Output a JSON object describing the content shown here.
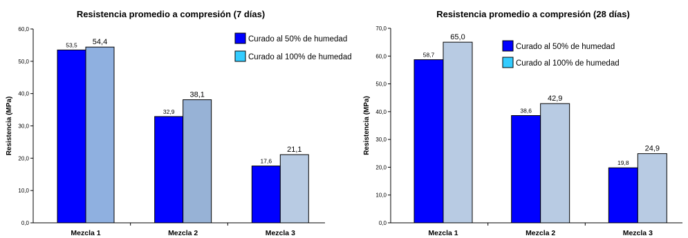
{
  "chart_data": [
    {
      "type": "bar",
      "title": "Resistencia promedio a compresión (7 días)",
      "ylabel": "Resistencia (MPa)",
      "xlabel": "",
      "categories": [
        "Mezcla 1",
        "Mezcla 2",
        "Mezcla 3"
      ],
      "ylim": [
        0,
        60
      ],
      "ytick_labels": [
        "0,0",
        "10,0",
        "20,0",
        "30,0",
        "40,0",
        "50,0",
        "60,0"
      ],
      "grid": false,
      "legend_position": "top-right",
      "series": [
        {
          "name": "Curado al 50% de humedad",
          "values": [
            53.5,
            32.9,
            17.6
          ],
          "labels": [
            "53,5",
            "32,9",
            "17,6"
          ],
          "color": "#0000ff",
          "legend_color": "#0000ff"
        },
        {
          "name": "Curado al 100% de humedad",
          "values": [
            54.4,
            38.1,
            21.1
          ],
          "labels": [
            "54,4",
            "38,1",
            "21,1"
          ],
          "colors": [
            "#8fb0e0",
            "#97b2d6",
            "#b8cbe3"
          ],
          "legend_color": "#33ccff"
        }
      ]
    },
    {
      "type": "bar",
      "title": "Resistencia promedio a compresión (28 días)",
      "ylabel": "Resistencia (MPa)",
      "xlabel": "",
      "categories": [
        "Mezcla 1",
        "Mezcla 2",
        "Mezcla 3"
      ],
      "ylim": [
        0,
        70
      ],
      "ytick_labels": [
        "0,0",
        "10,0",
        "20,0",
        "30,0",
        "40,0",
        "50,0",
        "60,0",
        "70,0"
      ],
      "grid": false,
      "legend_position": "top-right",
      "series": [
        {
          "name": "Curado al 50% de humedad",
          "values": [
            58.7,
            38.6,
            19.8
          ],
          "labels": [
            "58,7",
            "38,6",
            "19,8"
          ],
          "color": "#0000ff",
          "legend_color": "#0000ff"
        },
        {
          "name": "Curado al 100% de humedad",
          "values": [
            65.0,
            42.9,
            24.9
          ],
          "labels": [
            "65,0",
            "42,9",
            "24,9"
          ],
          "colors": [
            "#b8cbe3",
            "#b8cbe3",
            "#b8cbe3"
          ],
          "legend_color": "#33ccff"
        }
      ]
    }
  ]
}
